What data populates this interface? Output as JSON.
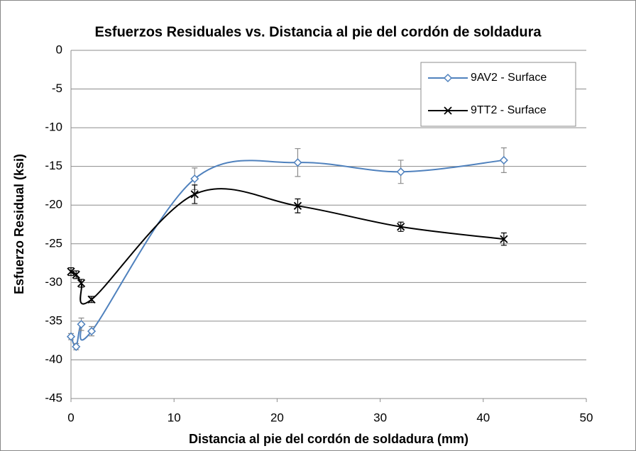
{
  "chart_data": {
    "type": "line",
    "title": "Esfuerzos Residuales vs. Distancia al pie del cordón de soldadura",
    "x_label": "Distancia al pie del cordón de soldadura (mm)",
    "y_label": "Esfuerzo  Residual (ksi)",
    "x": [
      0,
      0.5,
      1,
      2,
      12,
      22,
      32,
      42
    ],
    "series": [
      {
        "name": "9AV2 - Surface",
        "color": "#4f81bd",
        "marker": "diamond",
        "values": [
          -37,
          -38.3,
          -35.4,
          -36.3,
          -16.6,
          -14.5,
          -15.7,
          -14.2
        ],
        "errors": [
          0.4,
          0.4,
          0.8,
          0.6,
          1.4,
          1.8,
          1.5,
          1.6
        ]
      },
      {
        "name": "9TT2 - Surface",
        "color": "#000000",
        "marker": "x",
        "values": [
          -28.6,
          -29,
          -30.1,
          -32.2,
          -18.6,
          -20.1,
          -22.8,
          -24.4
        ],
        "errors": [
          0.5,
          0.5,
          0.5,
          0.4,
          1.2,
          0.9,
          0.6,
          0.8
        ]
      }
    ],
    "xlim": [
      0,
      50
    ],
    "xticks": [
      0,
      10,
      20,
      30,
      40,
      50
    ],
    "ylim": [
      -45,
      0
    ],
    "yticks": [
      0,
      -5,
      -10,
      -15,
      -20,
      -25,
      -30,
      -35,
      -40,
      -45
    ],
    "grid": true,
    "legend": "upper right",
    "smooth": true
  }
}
